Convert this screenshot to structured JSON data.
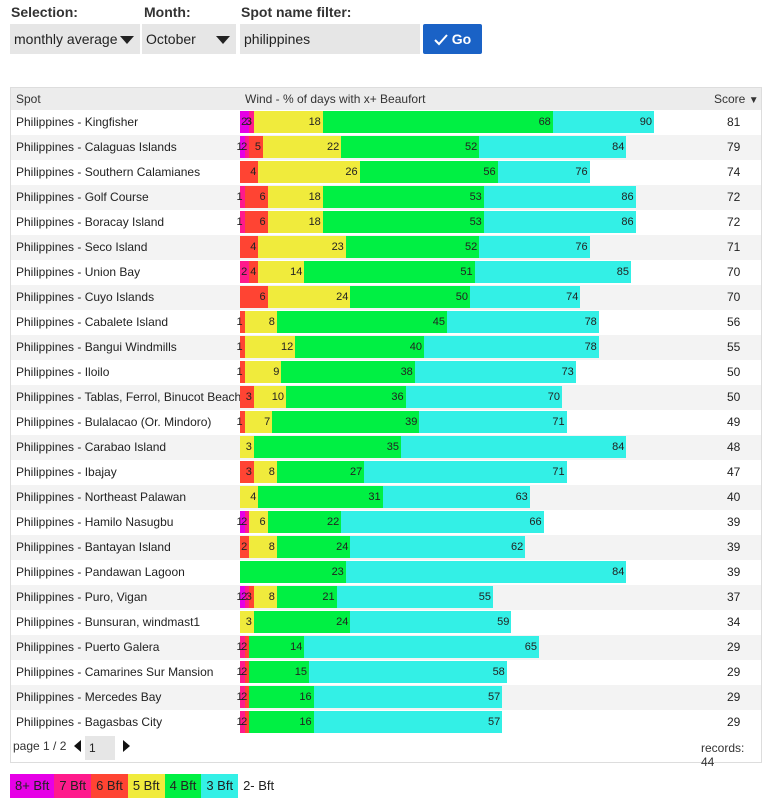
{
  "filters": {
    "selection_label": "Selection:",
    "selection_value": "monthly average",
    "month_label": "Month:",
    "month_value": "October",
    "spot_filter_label": "Spot name filter:",
    "spot_filter_value": "philippines",
    "go_label": "Go"
  },
  "table": {
    "headers": {
      "spot": "Spot",
      "wind": "Wind - % of days with x+ Beaufort",
      "score": "Score"
    },
    "colors": {
      "8": "#e600e6",
      "7": "#ff1a8c",
      "6": "#ff4433",
      "5": "#f0eb3c",
      "4": "#00f043",
      "3": "#33f0e6"
    },
    "rows": [
      {
        "spot": "Philippines - Kingfisher",
        "b8": 2,
        "b7": 3,
        "b6": 3,
        "b5": 18,
        "b4": 68,
        "b3": 90,
        "score": 81
      },
      {
        "spot": "Philippines - Calaguas Islands",
        "b8": 1,
        "b7": 2,
        "b6": 5,
        "b5": 22,
        "b4": 52,
        "b3": 84,
        "score": 79
      },
      {
        "spot": "Philippines - Southern Calamianes",
        "b8": 0,
        "b7": 0,
        "b6": 4,
        "b5": 26,
        "b4": 56,
        "b3": 76,
        "score": 74
      },
      {
        "spot": "Philippines - Golf Course",
        "b8": 0,
        "b7": 1,
        "b6": 6,
        "b5": 18,
        "b4": 53,
        "b3": 86,
        "score": 72
      },
      {
        "spot": "Philippines - Boracay Island",
        "b8": 0,
        "b7": 1,
        "b6": 6,
        "b5": 18,
        "b4": 53,
        "b3": 86,
        "score": 72
      },
      {
        "spot": "Philippines - Seco Island",
        "b8": 0,
        "b7": 0,
        "b6": 4,
        "b5": 23,
        "b4": 52,
        "b3": 76,
        "score": 71
      },
      {
        "spot": "Philippines - Union Bay",
        "b8": 0,
        "b7": 2,
        "b6": 4,
        "b5": 14,
        "b4": 51,
        "b3": 85,
        "score": 70
      },
      {
        "spot": "Philippines - Cuyo Islands",
        "b8": 0,
        "b7": 0,
        "b6": 6,
        "b5": 24,
        "b4": 50,
        "b3": 74,
        "score": 70
      },
      {
        "spot": "Philippines - Cabalete Island",
        "b8": 0,
        "b7": 0,
        "b6": 1,
        "b5": 8,
        "b4": 45,
        "b3": 78,
        "score": 56
      },
      {
        "spot": "Philippines - Bangui Windmills",
        "b8": 0,
        "b7": 0,
        "b6": 1,
        "b5": 12,
        "b4": 40,
        "b3": 78,
        "score": 55
      },
      {
        "spot": "Philippines - Iloilo",
        "b8": 0,
        "b7": 0,
        "b6": 1,
        "b5": 9,
        "b4": 38,
        "b3": 73,
        "score": 50
      },
      {
        "spot": "Philippines - Tablas, Ferrol, Binucot Beach",
        "b8": 0,
        "b7": 0,
        "b6": 3,
        "b5": 10,
        "b4": 36,
        "b3": 70,
        "score": 50
      },
      {
        "spot": "Philippines - Bulalacao (Or. Mindoro)",
        "b8": 0,
        "b7": 0,
        "b6": 1,
        "b5": 7,
        "b4": 39,
        "b3": 71,
        "score": 49
      },
      {
        "spot": "Philippines - Carabao Island",
        "b8": 0,
        "b7": 0,
        "b6": 0,
        "b5": 3,
        "b4": 35,
        "b3": 84,
        "score": 48
      },
      {
        "spot": "Philippines - Ibajay",
        "b8": 0,
        "b7": 0,
        "b6": 3,
        "b5": 8,
        "b4": 27,
        "b3": 71,
        "score": 47
      },
      {
        "spot": "Philippines - Northeast Palawan",
        "b8": 0,
        "b7": 0,
        "b6": 0,
        "b5": 4,
        "b4": 31,
        "b3": 63,
        "score": 40
      },
      {
        "spot": "Philippines - Hamilo Nasugbu",
        "b8": 1,
        "b7": 2,
        "b6": 0,
        "b5": 6,
        "b4": 22,
        "b3": 66,
        "score": 39
      },
      {
        "spot": "Philippines - Bantayan Island",
        "b8": 0,
        "b7": 0,
        "b6": 2,
        "b5": 8,
        "b4": 24,
        "b3": 62,
        "score": 39
      },
      {
        "spot": "Philippines - Pandawan Lagoon",
        "b8": 0,
        "b7": 0,
        "b6": 0,
        "b5": 0,
        "b4": 23,
        "b3": 84,
        "score": 39
      },
      {
        "spot": "Philippines - Puro, Vigan",
        "b8": 1,
        "b7": 2,
        "b6": 3,
        "b5": 8,
        "b4": 21,
        "b3": 55,
        "score": 37
      },
      {
        "spot": "Philippines - Bunsuran, windmast1",
        "b8": 0,
        "b7": 0,
        "b6": 0,
        "b5": 3,
        "b4": 24,
        "b3": 59,
        "score": 34
      },
      {
        "spot": "Philippines - Puerto Galera",
        "b8": 0,
        "b7": 1,
        "b6": 2,
        "b5": 0,
        "b4": 14,
        "b3": 65,
        "score": 29
      },
      {
        "spot": "Philippines - Camarines Sur Mansion",
        "b8": 0,
        "b7": 1,
        "b6": 2,
        "b5": 0,
        "b4": 15,
        "b3": 58,
        "score": 29
      },
      {
        "spot": "Philippines - Mercedes Bay",
        "b8": 0,
        "b7": 1,
        "b6": 2,
        "b5": 0,
        "b4": 16,
        "b3": 57,
        "score": 29
      },
      {
        "spot": "Philippines - Bagasbas City",
        "b8": 0,
        "b7": 1,
        "b6": 2,
        "b5": 0,
        "b4": 16,
        "b3": 57,
        "score": 29
      }
    ]
  },
  "pager": {
    "page_text": "page 1 / 2",
    "page_input": "1",
    "records_text": "records: 44"
  },
  "legend": [
    {
      "label": "8+ Bft",
      "color": "#e600e6"
    },
    {
      "label": "7 Bft",
      "color": "#ff1a8c"
    },
    {
      "label": "6 Bft",
      "color": "#ff4433"
    },
    {
      "label": "5 Bft",
      "color": "#f0eb3c"
    },
    {
      "label": "4 Bft",
      "color": "#00f043"
    },
    {
      "label": "3 Bft",
      "color": "#33f0e6"
    },
    {
      "label": "2- Bft",
      "color": "#ffffff"
    }
  ]
}
